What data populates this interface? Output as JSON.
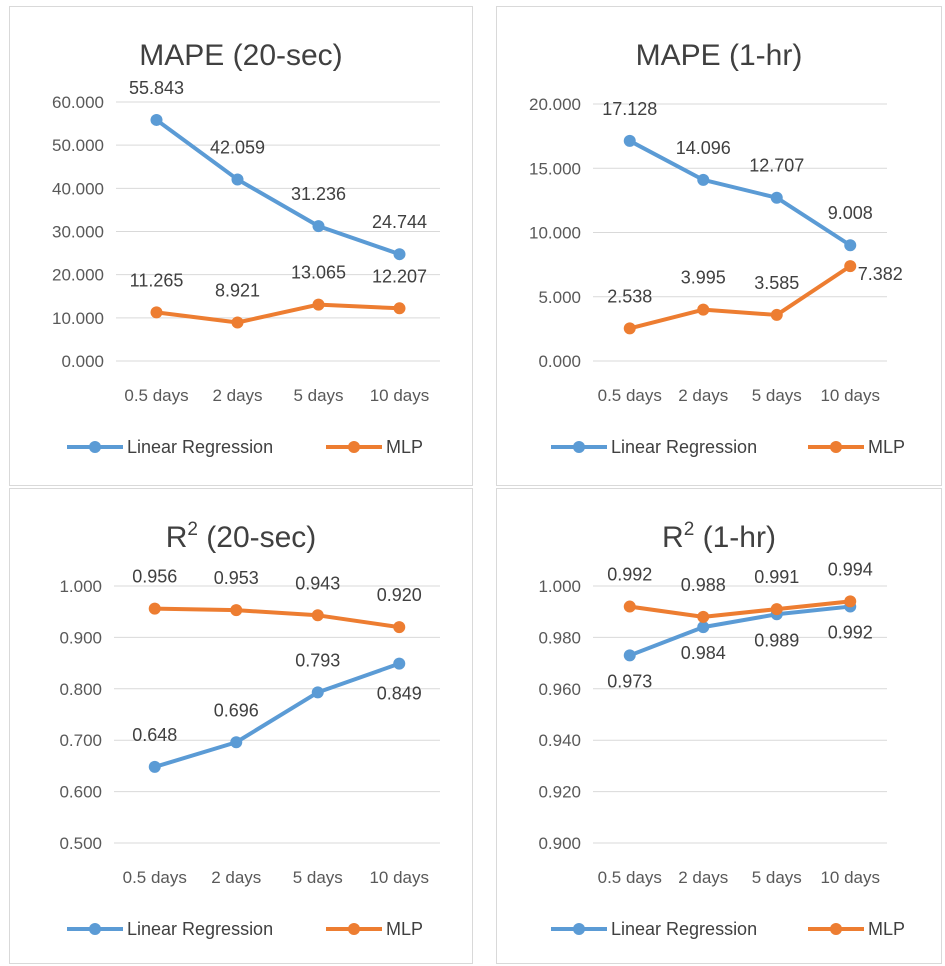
{
  "colors": {
    "linear": "#5b9bd5",
    "mlp": "#ed7d31"
  },
  "chart_data": [
    {
      "type": "line",
      "title": "MAPE (20-sec)",
      "categories": [
        "0.5 days",
        "2 days",
        "5 days",
        "10 days"
      ],
      "ylim": [
        0,
        60
      ],
      "yticks": [
        0,
        10,
        20,
        30,
        40,
        50,
        60
      ],
      "tick_labels": [
        "0.000",
        "10.000",
        "20.000",
        "30.000",
        "40.000",
        "50.000",
        "60.000"
      ],
      "grid": true,
      "legend_position": "bottom",
      "series": [
        {
          "name": "Linear Regression",
          "values": [
            55.843,
            42.059,
            31.236,
            24.744
          ],
          "labels": [
            "55.843",
            "42.059",
            "31.236",
            "24.744"
          ]
        },
        {
          "name": "MLP",
          "values": [
            11.265,
            8.921,
            13.065,
            12.207
          ],
          "labels": [
            "11.265",
            "8.921",
            "13.065",
            "12.207"
          ]
        }
      ]
    },
    {
      "type": "line",
      "title": "MAPE (1-hr)",
      "categories": [
        "0.5 days",
        "2 days",
        "5 days",
        "10 days"
      ],
      "ylim": [
        0,
        20
      ],
      "yticks": [
        0,
        5,
        10,
        15,
        20
      ],
      "tick_labels": [
        "0.000",
        "5.000",
        "10.000",
        "15.000",
        "20.000"
      ],
      "grid": true,
      "legend_position": "bottom",
      "series": [
        {
          "name": "Linear Regression",
          "values": [
            17.128,
            14.096,
            12.707,
            9.008
          ],
          "labels": [
            "17.128",
            "14.096",
            "12.707",
            "9.008"
          ]
        },
        {
          "name": "MLP",
          "values": [
            2.538,
            3.995,
            3.585,
            7.382
          ],
          "labels": [
            "2.538",
            "3.995",
            "3.585",
            "7.382"
          ]
        }
      ]
    },
    {
      "type": "line",
      "title": "R",
      "title_sup": "2",
      "title_suffix": " (20-sec)",
      "categories": [
        "0.5 days",
        "2 days",
        "5 days",
        "10 days"
      ],
      "ylim": [
        0.5,
        1.0
      ],
      "yticks": [
        0.5,
        0.6,
        0.7,
        0.8,
        0.9,
        1.0
      ],
      "tick_labels": [
        "0.500",
        "0.600",
        "0.700",
        "0.800",
        "0.900",
        "1.000"
      ],
      "grid": true,
      "legend_position": "bottom",
      "series": [
        {
          "name": "Linear Regression",
          "values": [
            0.648,
            0.696,
            0.793,
            0.849
          ],
          "labels": [
            "0.648",
            "0.696",
            "0.793",
            "0.849"
          ]
        },
        {
          "name": "MLP",
          "values": [
            0.956,
            0.953,
            0.943,
            0.92
          ],
          "labels": [
            "0.956",
            "0.953",
            "0.943",
            "0.920"
          ]
        }
      ]
    },
    {
      "type": "line",
      "title": "R",
      "title_sup": "2",
      "title_suffix": " (1-hr)",
      "categories": [
        "0.5 days",
        "2 days",
        "5 days",
        "10 days"
      ],
      "ylim": [
        0.9,
        1.0
      ],
      "yticks": [
        0.9,
        0.92,
        0.94,
        0.96,
        0.98,
        1.0
      ],
      "tick_labels": [
        "0.900",
        "0.920",
        "0.940",
        "0.960",
        "0.980",
        "1.000"
      ],
      "grid": true,
      "legend_position": "bottom",
      "series": [
        {
          "name": "Linear Regression",
          "values": [
            0.973,
            0.984,
            0.989,
            0.992
          ],
          "labels": [
            "0.973",
            "0.984",
            "0.989",
            "0.992"
          ]
        },
        {
          "name": "MLP",
          "values": [
            0.992,
            0.988,
            0.991,
            0.994
          ],
          "labels": [
            "0.992",
            "0.988",
            "0.991",
            "0.994"
          ]
        }
      ]
    }
  ]
}
